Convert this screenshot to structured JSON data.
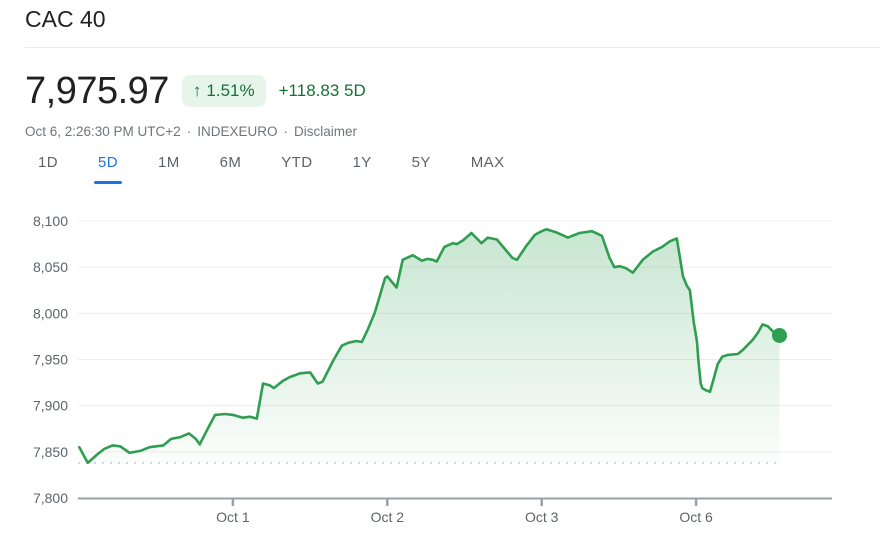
{
  "header": {
    "title": "CAC 40",
    "price": "7,975.97",
    "change_arrow": "↑",
    "change_percent": "1.51%",
    "change_absolute": "+118.83 5D",
    "timestamp": "Oct 6, 2:26:30 PM UTC+2",
    "separator1": "·",
    "exchange": "INDEXEURO",
    "separator2": "·",
    "disclaimer": "Disclaimer"
  },
  "tabs": [
    {
      "label": "1D",
      "active": false
    },
    {
      "label": "5D",
      "active": true
    },
    {
      "label": "1M",
      "active": false
    },
    {
      "label": "6M",
      "active": false
    },
    {
      "label": "YTD",
      "active": false
    },
    {
      "label": "1Y",
      "active": false
    },
    {
      "label": "5Y",
      "active": false
    },
    {
      "label": "MAX",
      "active": false
    }
  ],
  "colors": {
    "text_primary": "#202124",
    "text_secondary": "#70757a",
    "tab_inactive": "#5f6368",
    "tab_active": "#1a73e8",
    "positive_green": "#137333",
    "badge_bg": "#e6f4ea",
    "line_green": "#2f9e50",
    "fill_green": "#34a353",
    "grid": "#ecedef",
    "axis": "#9aa0a6",
    "axis_label": "#5f6368",
    "baseline_dots": "#c6cacd"
  },
  "chart_data": {
    "type": "area",
    "title": "CAC 40 5-day index price",
    "ylabel": "",
    "xlabel": "",
    "ylim": [
      7800,
      8100
    ],
    "y_ticks": [
      7800,
      7850,
      7900,
      7950,
      8000,
      8050,
      8100
    ],
    "grid": true,
    "x_ticks": [
      {
        "t": 1,
        "label": "Oct 1"
      },
      {
        "t": 2,
        "label": "Oct 2"
      },
      {
        "t": 3,
        "label": "Oct 3"
      },
      {
        "t": 4,
        "label": "Oct 6"
      }
    ],
    "baseline_value": 7838,
    "last_price": 7975.97,
    "series": [
      {
        "name": "CAC 40",
        "points": [
          [
            0.005,
            7855
          ],
          [
            0.06,
            7838
          ],
          [
            0.12,
            7847
          ],
          [
            0.165,
            7853
          ],
          [
            0.22,
            7857
          ],
          [
            0.27,
            7856
          ],
          [
            0.33,
            7849
          ],
          [
            0.4,
            7851
          ],
          [
            0.46,
            7855
          ],
          [
            0.55,
            7857
          ],
          [
            0.6,
            7864
          ],
          [
            0.66,
            7866
          ],
          [
            0.715,
            7870
          ],
          [
            0.76,
            7864
          ],
          [
            0.785,
            7858
          ],
          [
            0.84,
            7876
          ],
          [
            0.885,
            7890
          ],
          [
            0.95,
            7891
          ],
          [
            1,
            7890
          ],
          [
            1.065,
            7887
          ],
          [
            1.11,
            7888
          ],
          [
            1.155,
            7886
          ],
          [
            1.195,
            7924
          ],
          [
            1.24,
            7922
          ],
          [
            1.265,
            7919
          ],
          [
            1.325,
            7927
          ],
          [
            1.37,
            7931
          ],
          [
            1.435,
            7935
          ],
          [
            1.5,
            7936
          ],
          [
            1.55,
            7924
          ],
          [
            1.58,
            7926
          ],
          [
            1.65,
            7949
          ],
          [
            1.705,
            7965
          ],
          [
            1.745,
            7968
          ],
          [
            1.8,
            7970
          ],
          [
            1.835,
            7969
          ],
          [
            1.875,
            7983
          ],
          [
            1.92,
            8001
          ],
          [
            1.985,
            8038
          ],
          [
            2,
            8040
          ],
          [
            2.06,
            8028
          ],
          [
            2.1,
            8058
          ],
          [
            2.165,
            8063
          ],
          [
            2.225,
            8057
          ],
          [
            2.26,
            8059
          ],
          [
            2.295,
            8058
          ],
          [
            2.32,
            8056
          ],
          [
            2.37,
            8072
          ],
          [
            2.425,
            8076
          ],
          [
            2.45,
            8075
          ],
          [
            2.49,
            8079
          ],
          [
            2.545,
            8087
          ],
          [
            2.61,
            8076
          ],
          [
            2.65,
            8082
          ],
          [
            2.71,
            8080
          ],
          [
            2.775,
            8067
          ],
          [
            2.81,
            8060
          ],
          [
            2.84,
            8058
          ],
          [
            2.9,
            8073
          ],
          [
            2.955,
            8085
          ],
          [
            3,
            8089
          ],
          [
            3.03,
            8091
          ],
          [
            3.09,
            8088
          ],
          [
            3.17,
            8082
          ],
          [
            3.245,
            8087
          ],
          [
            3.325,
            8089
          ],
          [
            3.39,
            8084
          ],
          [
            3.44,
            8060
          ],
          [
            3.47,
            8050
          ],
          [
            3.505,
            8051
          ],
          [
            3.545,
            8049
          ],
          [
            3.59,
            8044
          ],
          [
            3.655,
            8058
          ],
          [
            3.72,
            8067
          ],
          [
            3.78,
            8072
          ],
          [
            3.83,
            8078
          ],
          [
            3.875,
            8081
          ],
          [
            3.915,
            8040
          ],
          [
            3.94,
            8030
          ],
          [
            3.96,
            8025
          ],
          [
            3.985,
            7990
          ],
          [
            4.005,
            7970
          ],
          [
            4.015,
            7949
          ],
          [
            4.03,
            7924
          ],
          [
            4.04,
            7919
          ],
          [
            4.06,
            7917
          ],
          [
            4.09,
            7915
          ],
          [
            4.115,
            7930
          ],
          [
            4.14,
            7945
          ],
          [
            4.17,
            7953
          ],
          [
            4.205,
            7955
          ],
          [
            4.27,
            7956
          ],
          [
            4.3,
            7960
          ],
          [
            4.365,
            7971
          ],
          [
            4.4,
            7979
          ],
          [
            4.43,
            7988
          ],
          [
            4.465,
            7986
          ],
          [
            4.5,
            7980
          ],
          [
            4.54,
            7976
          ]
        ]
      }
    ]
  }
}
